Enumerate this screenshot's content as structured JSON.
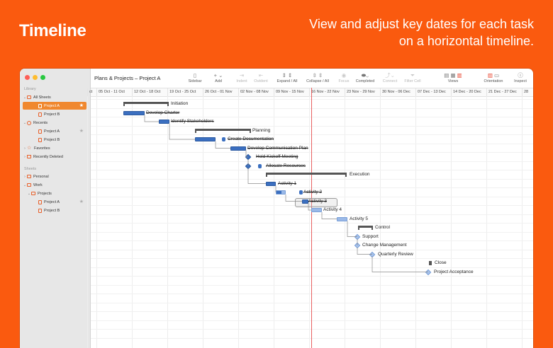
{
  "hero": {
    "title": "Timeline",
    "subtitle": "View and adjust key dates for each task on a horizontal timeline."
  },
  "colors": {
    "background": "#fa5a0f",
    "accent": "#f0882f",
    "bar": "#3b6fc0",
    "bar_light": "#9ab9e8",
    "today_line": "#e86060"
  },
  "window": {
    "title": "Plans & Projects – Project A"
  },
  "sidebar": {
    "library_label": "Library",
    "all_sheets": "All Sheets",
    "all_sheets_items": [
      "Project A",
      "Project B"
    ],
    "recents": "Recents",
    "recents_items": [
      "Project A",
      "Project B"
    ],
    "favorites": "Favorites",
    "recently_deleted": "Recently Deleted",
    "sheets_label": "Sheets",
    "personal": "Personal",
    "work": "Work",
    "projects": "Projects",
    "projects_items": [
      "Project A",
      "Project B"
    ]
  },
  "toolbar": {
    "sidebar": "Sidebar",
    "add": "Add",
    "indent": "Indent",
    "outdent": "Outdent",
    "expand_all": "Expand / All",
    "collapse_all": "Collapse / All",
    "focus": "Focus",
    "completed": "Completed",
    "connect": "Connect",
    "filter_cell": "Filter Cell",
    "views": "Views",
    "orientation": "Orientation",
    "inspect": "Inspect"
  },
  "timeline": {
    "date_columns": [
      "ct",
      "05 Oct - 11 Oct",
      "12 Oct - 18 Oct",
      "19 Oct - 25 Oct",
      "26 Oct - 01 Nov",
      "02 Nov - 08 Nov",
      "09 Nov - 15 Nov",
      "16 Nov - 22 Nov",
      "23 Nov - 29 Nov",
      "30 Nov - 06 Dec",
      "07 Dec - 13 Dec",
      "14 Dec - 20 Dec",
      "21 Dec - 27 Dec",
      "28"
    ],
    "tasks": [
      {
        "label": "Initiation",
        "kind": "summary",
        "completed": false
      },
      {
        "label": "Develop Charter",
        "kind": "bar",
        "completed": true
      },
      {
        "label": "Identify Stakeholders",
        "kind": "bar",
        "completed": true
      },
      {
        "label": "Planning",
        "kind": "summary",
        "completed": false
      },
      {
        "label": "Create Documentation",
        "kind": "bar",
        "completed": true
      },
      {
        "label": "Develop Communication Plan",
        "kind": "bar",
        "completed": true
      },
      {
        "label": "Hold Kickoff Meeting",
        "kind": "milestone",
        "completed": true
      },
      {
        "label": "Allocate Resources",
        "kind": "milestone",
        "completed": true
      },
      {
        "label": "Execution",
        "kind": "summary",
        "completed": false
      },
      {
        "label": "Activity 1",
        "kind": "bar",
        "completed": true
      },
      {
        "label": "Activity 2",
        "kind": "bar",
        "completed": true
      },
      {
        "label": "Activity 3",
        "kind": "bar",
        "completed": true
      },
      {
        "label": "Activity 4",
        "kind": "bar",
        "completed": false
      },
      {
        "label": "Activity 5",
        "kind": "bar",
        "completed": false
      },
      {
        "label": "Control",
        "kind": "summary",
        "completed": false
      },
      {
        "label": "Support",
        "kind": "milestone",
        "completed": false
      },
      {
        "label": "Change Management",
        "kind": "milestone",
        "completed": false
      },
      {
        "label": "Quarterly Review",
        "kind": "milestone",
        "completed": false
      },
      {
        "label": "Close",
        "kind": "summary",
        "completed": false
      },
      {
        "label": "Project Acceptance",
        "kind": "milestone",
        "completed": false
      }
    ]
  }
}
